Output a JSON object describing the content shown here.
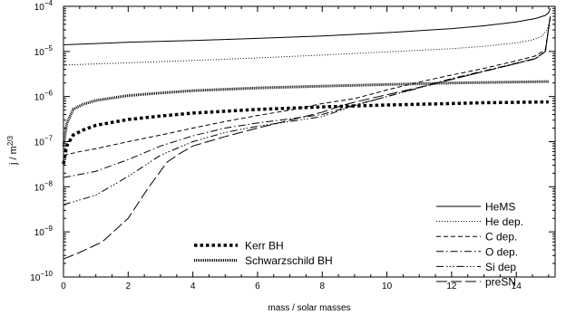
{
  "chart_data": {
    "type": "line",
    "title": "",
    "xlabel": "mass / solar masses",
    "ylabel_parts": {
      "base": "j / m",
      "exp": "2/3"
    },
    "xlim": [
      0,
      15.2
    ],
    "ylim": [
      1e-10,
      0.0001
    ],
    "y_scale": "log",
    "grid": false,
    "x_ticks": [
      0,
      2,
      4,
      6,
      8,
      10,
      12,
      14
    ],
    "x_tick_labels": [
      "0",
      "2",
      "4",
      "6",
      "8",
      "10",
      "12",
      "14"
    ],
    "y_ticks": [
      {
        "value": 1e-10,
        "base": "10",
        "exp": "−10"
      },
      {
        "value": 1e-09,
        "base": "10",
        "exp": "−9"
      },
      {
        "value": 1e-08,
        "base": "10",
        "exp": "−8"
      },
      {
        "value": 1e-07,
        "base": "10",
        "exp": "−7"
      },
      {
        "value": 1e-06,
        "base": "10",
        "exp": "−6"
      },
      {
        "value": 1e-05,
        "base": "10",
        "exp": "−5"
      },
      {
        "value": 0.0001,
        "base": "10",
        "exp": "−4"
      }
    ],
    "legend_placement": "bottom-right",
    "legend_bh_placement": "bottom-center",
    "series": [
      {
        "name": "HeMS",
        "style": "solid",
        "x": [
          0,
          2,
          4,
          6,
          8,
          10,
          12,
          13,
          14,
          14.6,
          14.9,
          15.0,
          15.05
        ],
        "y": [
          1.4e-05,
          1.6e-05,
          1.75e-05,
          1.95e-05,
          2.2e-05,
          2.6e-05,
          3.2e-05,
          3.7e-05,
          4.5e-05,
          5.4e-05,
          6.3e-05,
          7.3e-05,
          9e-05
        ]
      },
      {
        "name": "He dep.",
        "style": "dotted",
        "x": [
          0,
          2,
          4,
          6,
          8,
          10,
          12,
          13,
          14,
          14.5,
          14.8,
          14.95,
          15.05
        ],
        "y": [
          5e-06,
          5.6e-06,
          6.3e-06,
          7.2e-06,
          8.3e-06,
          9.8e-06,
          1.15e-05,
          1.3e-05,
          1.55e-05,
          1.8e-05,
          2.2e-05,
          3e-05,
          5e-05
        ]
      },
      {
        "name": "C dep.",
        "style": "dashed",
        "x": [
          0,
          0.5,
          1,
          2,
          3,
          4,
          5,
          6,
          7,
          8,
          9,
          10,
          11,
          12,
          13,
          14,
          14.6,
          14.9,
          15.05
        ],
        "y": [
          5e-08,
          6e-08,
          7e-08,
          1e-07,
          1.4e-07,
          2e-07,
          2.8e-07,
          3.8e-07,
          5e-07,
          7e-07,
          9e-07,
          1.4e-06,
          2.1e-06,
          3e-06,
          4.2e-06,
          6.2e-06,
          8e-06,
          1.1e-05,
          6e-05
        ]
      },
      {
        "name": "O dep.",
        "style": "dashdot",
        "x": [
          0,
          1,
          2,
          3,
          4,
          5,
          6,
          7,
          8,
          9,
          10,
          11,
          12,
          13,
          14,
          14.6,
          14.9,
          15.05
        ],
        "y": [
          1.6e-08,
          2.2e-08,
          4e-08,
          8e-08,
          1.35e-07,
          2e-07,
          2.6e-07,
          3.2e-07,
          4e-07,
          6.5e-07,
          1e-06,
          1.6e-06,
          2.5e-06,
          3.7e-06,
          5.5e-06,
          7e-06,
          1e-05,
          6e-05
        ]
      },
      {
        "name": "Si dep",
        "style": "dashdotdotdot",
        "x": [
          0,
          1,
          2,
          3,
          4,
          5,
          6,
          7,
          8,
          9,
          10,
          11,
          12,
          13,
          14,
          14.6,
          14.9,
          15.05
        ],
        "y": [
          4e-09,
          6.5e-09,
          1.7e-08,
          5e-08,
          1e-07,
          1.6e-07,
          2.2e-07,
          2.8e-07,
          3.6e-07,
          6.3e-07,
          1e-06,
          1.55e-06,
          2.4e-06,
          3.6e-06,
          5.4e-06,
          6.9e-06,
          1e-05,
          6e-05
        ]
      },
      {
        "name": "preSN",
        "style": "longdash",
        "x": [
          0,
          0.5,
          1.2,
          2,
          2.6,
          3.2,
          3.6,
          4,
          5,
          6,
          7,
          8,
          8.6,
          9,
          10,
          11,
          12,
          13,
          14,
          14.6,
          14.9,
          15.05
        ],
        "y": [
          2.5e-10,
          3.5e-10,
          6e-10,
          2e-09,
          9e-09,
          3.5e-08,
          5.5e-08,
          8e-08,
          1.3e-07,
          2e-07,
          3e-07,
          4.5e-07,
          6.3e-07,
          7.5e-07,
          1.1e-06,
          1.6e-06,
          2.4e-06,
          3.6e-06,
          5.4e-06,
          7e-06,
          1e-05,
          6e-05
        ]
      },
      {
        "name": "Kerr BH",
        "style": "thickdotted",
        "x": [
          0,
          0.1,
          0.3,
          0.6,
          1,
          2,
          3,
          4,
          6,
          8,
          10,
          12,
          13,
          15
        ],
        "y": [
          3.2e-08,
          8e-08,
          1.4e-07,
          1.8e-07,
          2.3e-07,
          3.1e-07,
          3.7e-07,
          4.3e-07,
          5.2e-07,
          5.9e-07,
          6.5e-07,
          7e-07,
          7.3e-07,
          7.6e-07
        ]
      },
      {
        "name": "Schwarzschild BH",
        "style": "densedotted",
        "x": [
          0,
          0.1,
          0.3,
          0.6,
          1,
          2,
          3,
          4,
          6,
          8,
          10,
          12,
          13,
          15
        ],
        "y": [
          8e-08,
          2.5e-07,
          5.2e-07,
          6.7e-07,
          8.2e-07,
          1.05e-06,
          1.2e-06,
          1.35e-06,
          1.55e-06,
          1.7e-06,
          1.85e-06,
          2e-06,
          2.05e-06,
          2.15e-06
        ]
      }
    ]
  }
}
